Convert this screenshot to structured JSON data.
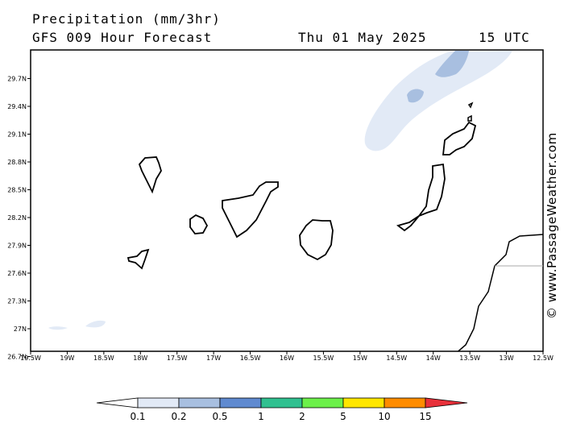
{
  "header": {
    "product": "Precipitation (mm/3hr)",
    "forecast": "GFS 009 Hour Forecast",
    "date": "Thu 01 May 2025",
    "time": "15 UTC"
  },
  "credit": "© www.PassageWeather.com",
  "axes": {
    "lon_labels": [
      "19.5W",
      "19W",
      "18.5W",
      "18W",
      "17.5W",
      "17W",
      "16.5W",
      "16W",
      "15.5W",
      "15W",
      "14.5W",
      "14W",
      "13.5W",
      "13W",
      "12.5W"
    ],
    "lat_labels": [
      "29.7N",
      "29.4N",
      "29.1N",
      "28.8N",
      "28.5N",
      "28.2N",
      "27.9N",
      "27.6N",
      "27.3N",
      "27N",
      "26.7N"
    ]
  },
  "legend": {
    "labels": [
      "0.1",
      "0.2",
      "0.5",
      "1",
      "2",
      "5",
      "10",
      "15"
    ],
    "colors": [
      "#e2eaf6",
      "#a8bfe0",
      "#5f8ad0",
      "#30c090",
      "#6cf04a",
      "#ffe600",
      "#ff8c00",
      "#e8303a"
    ]
  },
  "colors": {
    "coast": "#000000",
    "light_precip": "#e2eaf6",
    "medium_precip": "#a8bfe0",
    "border": "#aaaaaa"
  }
}
